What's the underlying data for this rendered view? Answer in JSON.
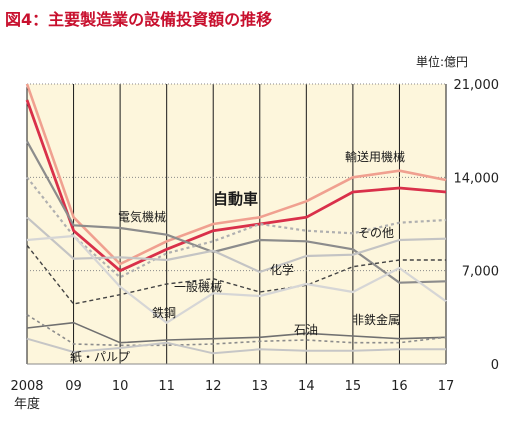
{
  "title": "図4：主要製造業の設備投資額の推移",
  "chart_data": {
    "type": "line",
    "unit": "単位:億円",
    "x": [
      "2008",
      "09",
      "10",
      "11",
      "12",
      "13",
      "14",
      "15",
      "16",
      "17"
    ],
    "x_sublabel": "年度",
    "ylim": [
      0,
      21000
    ],
    "yticks": [
      "0",
      "7,000",
      "14,000",
      "21,000"
    ],
    "series": [
      {
        "name": "輸送用機械",
        "color": "#f0a090",
        "dash": "",
        "width": 2.6,
        "values": [
          21000,
          11000,
          7500,
          9200,
          10500,
          11000,
          12200,
          14000,
          14500,
          13800
        ]
      },
      {
        "name": "自動車",
        "color": "#d9304a",
        "dash": "",
        "width": 2.8,
        "values": [
          19800,
          10000,
          7000,
          8600,
          10000,
          10500,
          11000,
          12900,
          13200,
          12900
        ]
      },
      {
        "name": "電気機械",
        "color": "#8c8c8c",
        "dash": "",
        "width": 2.2,
        "values": [
          16700,
          10400,
          10200,
          9700,
          8400,
          9300,
          9200,
          8600,
          6100,
          6200
        ]
      },
      {
        "name": "その他",
        "color": "#b0b0b0",
        "dash": "3,3",
        "width": 2.2,
        "values": [
          14000,
          9600,
          6500,
          8300,
          9200,
          10500,
          10000,
          9800,
          10600,
          10800
        ]
      },
      {
        "name": "化学",
        "color": "#c4c4c4",
        "dash": "",
        "width": 2.2,
        "values": [
          11000,
          7900,
          8000,
          7800,
          8500,
          6900,
          8100,
          8200,
          9300,
          9400
        ]
      },
      {
        "name": "一般機械",
        "color": "#444444",
        "dash": "4,3",
        "width": 1.4,
        "values": [
          8900,
          4500,
          5200,
          6000,
          6400,
          5400,
          5900,
          7300,
          7800,
          7800
        ]
      },
      {
        "name": "鉄鋼",
        "color": "#d6d6d6",
        "dash": "",
        "width": 2.2,
        "values": [
          9300,
          9600,
          5800,
          3100,
          5300,
          5100,
          6000,
          5400,
          7200,
          4700
        ]
      },
      {
        "name": "石油",
        "color": "#707070",
        "dash": "",
        "width": 1.6,
        "values": [
          2700,
          3100,
          1600,
          1800,
          1900,
          2000,
          2300,
          2100,
          1900,
          2000
        ]
      },
      {
        "name": "非鉄金属",
        "color": "#8c8c8c",
        "dash": "3,3",
        "width": 1.6,
        "values": [
          3700,
          1500,
          1400,
          1400,
          1500,
          1700,
          1800,
          1600,
          1600,
          2000
        ]
      },
      {
        "name": "紙・パルプ",
        "color": "#c6c6c6",
        "dash": "",
        "width": 2.0,
        "values": [
          1900,
          900,
          1200,
          1600,
          800,
          1100,
          1000,
          1000,
          1100,
          1100
        ]
      }
    ]
  }
}
